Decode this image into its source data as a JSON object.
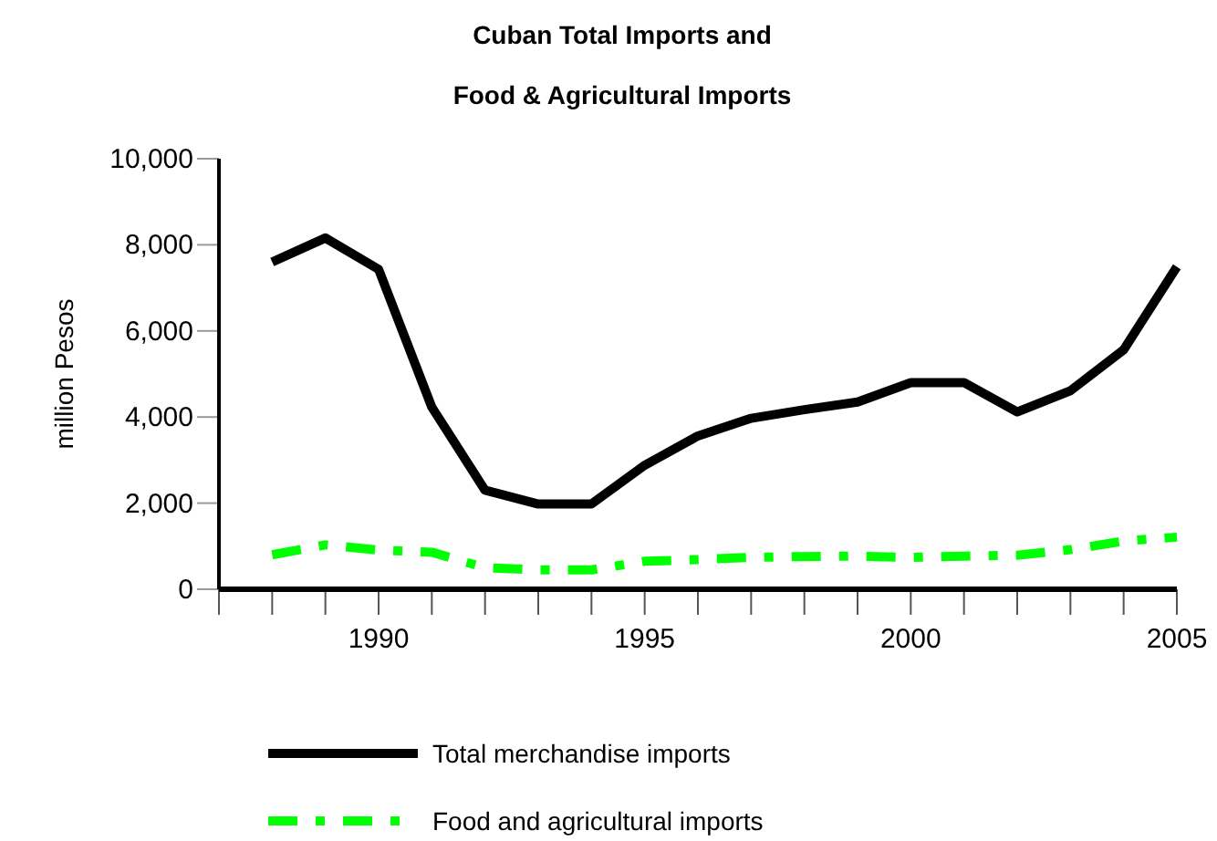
{
  "chart_data": {
    "type": "line",
    "title": "Cuban Total Imports and\nFood & Agricultural Imports",
    "ylabel": "million Pesos",
    "x": [
      1988,
      1989,
      1990,
      1991,
      1992,
      1993,
      1994,
      1995,
      1996,
      1997,
      1998,
      1999,
      2000,
      2001,
      2002,
      2003,
      2004,
      2005
    ],
    "xlim": [
      1987,
      2005
    ],
    "xticks": [
      {
        "value": 1987,
        "label": null
      },
      {
        "value": 1988,
        "label": null
      },
      {
        "value": 1989,
        "label": null
      },
      1990,
      {
        "value": 1991,
        "label": null
      },
      {
        "value": 1992,
        "label": null
      },
      {
        "value": 1993,
        "label": null
      },
      {
        "value": 1994,
        "label": null
      },
      1995,
      {
        "value": 1996,
        "label": null
      },
      {
        "value": 1997,
        "label": null
      },
      {
        "value": 1998,
        "label": null
      },
      {
        "value": 1999,
        "label": null
      },
      2000,
      {
        "value": 2001,
        "label": null
      },
      {
        "value": 2002,
        "label": null
      },
      {
        "value": 2003,
        "label": null
      },
      {
        "value": 2004,
        "label": null
      },
      2005
    ],
    "ylim": [
      0,
      10000
    ],
    "yticks": [
      0,
      {
        "value": 2000,
        "label": "2,000"
      },
      {
        "value": 4000,
        "label": "4,000"
      },
      {
        "value": 6000,
        "label": "6,000"
      },
      {
        "value": 8000,
        "label": "8,000"
      },
      {
        "value": 10000,
        "label": "10,000"
      }
    ],
    "grid": false,
    "legend": "bottom",
    "series": [
      {
        "name": "Total merchandise imports",
        "color": "#000000",
        "line_style": "solid",
        "values": [
          7600,
          8160,
          7430,
          4230,
          2300,
          1980,
          1980,
          2880,
          3560,
          3970,
          4170,
          4350,
          4800,
          4800,
          4120,
          4610,
          5560,
          7490
        ]
      },
      {
        "name": "Food and agricultural imports",
        "color": "#00ff00",
        "line_style": "dashed",
        "values": [
          800,
          1030,
          910,
          860,
          500,
          450,
          450,
          650,
          690,
          740,
          760,
          770,
          740,
          770,
          790,
          920,
          1120,
          1210
        ]
      }
    ]
  }
}
